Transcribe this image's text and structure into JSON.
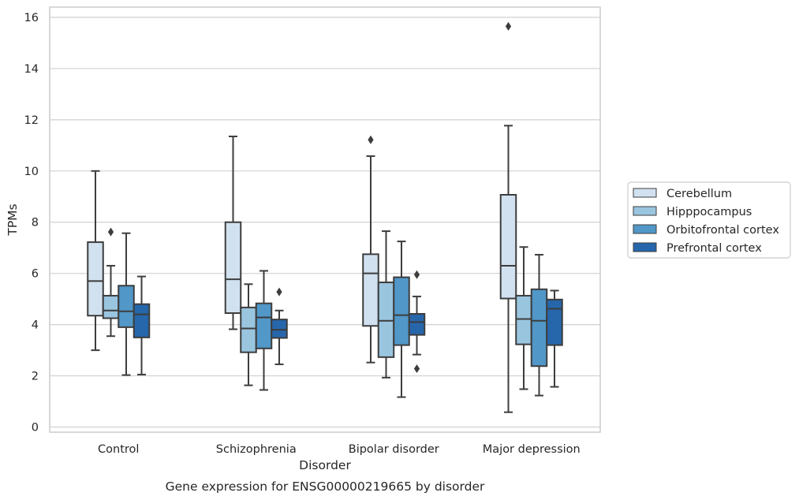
{
  "chart_data": {
    "type": "box",
    "caption": "Gene expression for ENSG00000219665 by disorder",
    "xlabel": "Disorder",
    "ylabel": "TPMs",
    "ylim": [
      -0.2,
      16.4
    ],
    "yticks": [
      0,
      2,
      4,
      6,
      8,
      10,
      12,
      14,
      16
    ],
    "grid": true,
    "legend_position": "right",
    "categories": [
      "Control",
      "Schizophrenia",
      "Bipolar disorder",
      "Major depression"
    ],
    "series": [
      {
        "name": "Cerebellum",
        "color": "#d1e1f0",
        "boxes": [
          {
            "whislo": 3.0,
            "q1": 4.35,
            "med": 5.7,
            "q3": 7.22,
            "whishi": 10.0,
            "fliers": []
          },
          {
            "whislo": 3.82,
            "q1": 4.45,
            "med": 5.77,
            "q3": 8.0,
            "whishi": 11.35,
            "fliers": []
          },
          {
            "whislo": 2.52,
            "q1": 3.95,
            "med": 6.0,
            "q3": 6.75,
            "whishi": 10.58,
            "fliers": [
              11.22
            ]
          },
          {
            "whislo": 0.58,
            "q1": 5.02,
            "med": 6.3,
            "q3": 9.07,
            "whishi": 11.77,
            "fliers": [
              15.65
            ]
          }
        ]
      },
      {
        "name": "Hipppocampus",
        "color": "#9ac5df",
        "boxes": [
          {
            "whislo": 3.55,
            "q1": 4.25,
            "med": 4.55,
            "q3": 5.13,
            "whishi": 6.3,
            "fliers": [
              7.62
            ]
          },
          {
            "whislo": 1.63,
            "q1": 2.92,
            "med": 3.85,
            "q3": 4.67,
            "whishi": 5.58,
            "fliers": []
          },
          {
            "whislo": 1.93,
            "q1": 2.73,
            "med": 4.15,
            "q3": 5.65,
            "whishi": 7.65,
            "fliers": []
          },
          {
            "whislo": 1.48,
            "q1": 3.23,
            "med": 4.22,
            "q3": 5.13,
            "whishi": 7.03,
            "fliers": []
          }
        ]
      },
      {
        "name": "Orbitofrontal cortex",
        "color": "#5197c8",
        "boxes": [
          {
            "whislo": 2.03,
            "q1": 3.9,
            "med": 4.52,
            "q3": 5.52,
            "whishi": 7.57,
            "fliers": []
          },
          {
            "whislo": 1.45,
            "q1": 3.07,
            "med": 4.28,
            "q3": 4.83,
            "whishi": 6.1,
            "fliers": []
          },
          {
            "whislo": 1.17,
            "q1": 3.2,
            "med": 4.37,
            "q3": 5.85,
            "whishi": 7.25,
            "fliers": []
          },
          {
            "whislo": 1.23,
            "q1": 2.38,
            "med": 4.15,
            "q3": 5.38,
            "whishi": 6.73,
            "fliers": []
          }
        ]
      },
      {
        "name": "Prefrontal cortex",
        "color": "#2666ab",
        "boxes": [
          {
            "whislo": 2.05,
            "q1": 3.5,
            "med": 4.4,
            "q3": 4.8,
            "whishi": 5.88,
            "fliers": []
          },
          {
            "whislo": 2.45,
            "q1": 3.48,
            "med": 3.8,
            "q3": 4.2,
            "whishi": 4.55,
            "fliers": [
              5.28
            ]
          },
          {
            "whislo": 2.83,
            "q1": 3.6,
            "med": 4.1,
            "q3": 4.42,
            "whishi": 5.1,
            "fliers": [
              5.95,
              2.28
            ]
          },
          {
            "whislo": 1.57,
            "q1": 3.2,
            "med": 4.62,
            "q3": 4.98,
            "whishi": 5.33,
            "fliers": []
          }
        ]
      }
    ]
  }
}
